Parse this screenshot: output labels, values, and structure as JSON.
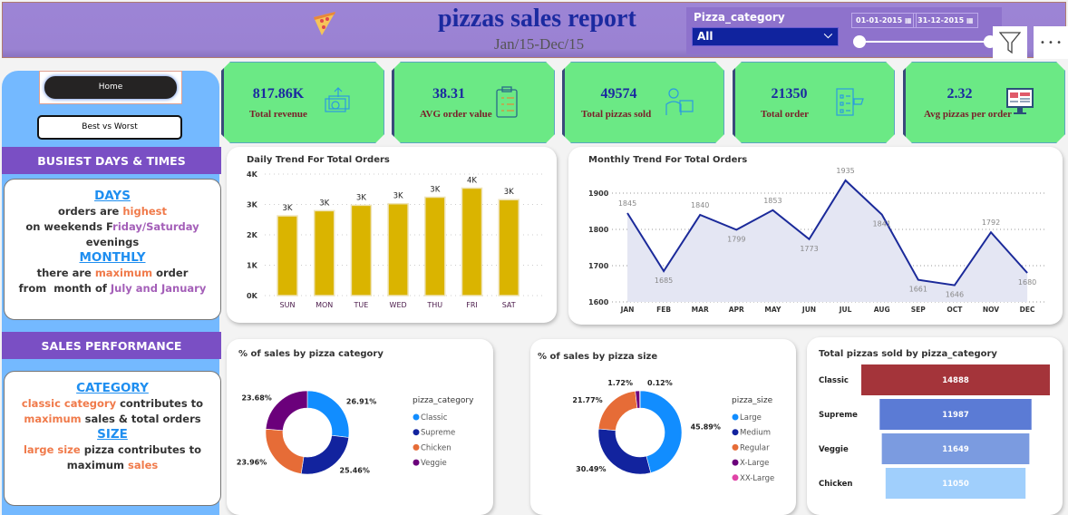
{
  "header": {
    "title": "pizzas sales report",
    "subtitle": "Jan/15-Dec/15",
    "pizza-icon": "pizza-slice-icon"
  },
  "slicer": {
    "label": "Pizza_category",
    "selected": "All",
    "date_start": "01-01-2015",
    "date_end": "31-12-2015"
  },
  "toolbar": {
    "filter_icon": "filter-icon",
    "more_label": "• • •"
  },
  "nav": {
    "home": "Home",
    "best_worst": "Best vs Worst"
  },
  "insights": {
    "busiest_title": "BUSIEST DAYS & TIMES",
    "days_h": "DAYS",
    "days_1a": "orders are ",
    "days_1b": "highest",
    "days_2a": "on weekends F",
    "days_2b": "riday/Saturday",
    "days_3": "evenings",
    "monthly_h": "MONTHLY",
    "monthly_1a": "there are ",
    "monthly_1b": "maximum",
    "monthly_1c": " order",
    "monthly_2a": "from  month of ",
    "monthly_2b": "July and January",
    "sales_title": "SALES PERFORMANCE",
    "cat_h": "CATEGORY",
    "cat_1a": "classic category",
    "cat_1b": " contributes to",
    "cat_2a": "maximum",
    "cat_2b": " sales & total orders",
    "size_h": "SIZE",
    "size_1a": "large size",
    "size_1b": " pizza contributes to",
    "size_2a": "maximum ",
    "size_2b": "sales"
  },
  "kpis": [
    {
      "value": "817.86K",
      "label": "Total revenue",
      "icon": "money-icon"
    },
    {
      "value": "38.31",
      "label": "AVG order value",
      "icon": "clipboard-icon"
    },
    {
      "value": "49574",
      "label": "Total pizzas sold",
      "icon": "delivery-person-icon"
    },
    {
      "value": "21350",
      "label": "Total order",
      "icon": "order-list-icon"
    },
    {
      "value": "2.32",
      "label": "Avg pizzas per order",
      "icon": "monitor-icon"
    }
  ],
  "colors": {
    "bar": "#dab400",
    "line": "#1b2a9a",
    "area": "#e4e6f3"
  },
  "chart_data": [
    {
      "type": "bar",
      "title": "Daily Trend For Total Orders",
      "categories": [
        "SUN",
        "MON",
        "TUE",
        "WED",
        "THU",
        "FRI",
        "SAT"
      ],
      "values": [
        2624,
        2794,
        2973,
        3024,
        3239,
        3538,
        3158
      ],
      "data_labels": [
        "3K",
        "3K",
        "3K",
        "3K",
        "3K",
        "4K",
        "3K"
      ],
      "yticks": [
        "0K",
        "1K",
        "2K",
        "3K",
        "4K"
      ],
      "ylim": [
        0,
        4000
      ],
      "grid": true
    },
    {
      "type": "area",
      "title": "Monthly Trend For Total Orders",
      "categories": [
        "JAN",
        "FEB",
        "MAR",
        "APR",
        "MAY",
        "JUN",
        "JUL",
        "AUG",
        "SEP",
        "OCT",
        "NOV",
        "DEC"
      ],
      "values": [
        1845,
        1685,
        1840,
        1799,
        1853,
        1773,
        1935,
        1841,
        1661,
        1646,
        1792,
        1680
      ],
      "yticks": [
        "1600",
        "1700",
        "1800",
        "1900"
      ],
      "ylim": [
        1600,
        1950
      ],
      "grid": true
    },
    {
      "type": "pie",
      "title": "% of sales by pizza category",
      "legend_title": "pizza_category",
      "legend": "right",
      "slices": [
        {
          "name": "Classic",
          "value": 26.91,
          "label": "26.91%",
          "color": "#118dff"
        },
        {
          "name": "Supreme",
          "value": 25.46,
          "label": "25.46%",
          "color": "#12239e"
        },
        {
          "name": "Chicken",
          "value": 23.96,
          "label": "23.96%",
          "color": "#e66c37"
        },
        {
          "name": "Veggie",
          "value": 23.68,
          "label": "23.68%",
          "color": "#6b007b"
        }
      ]
    },
    {
      "type": "pie",
      "title": "% of sales by pizza size",
      "legend_title": "pizza_size",
      "legend": "right",
      "slices": [
        {
          "name": "Large",
          "value": 45.89,
          "label": "45.89%",
          "color": "#118dff"
        },
        {
          "name": "Medium",
          "value": 30.49,
          "label": "30.49%",
          "color": "#12239e"
        },
        {
          "name": "Regular",
          "value": 21.77,
          "label": "21.77%",
          "color": "#e66c37"
        },
        {
          "name": "X-Large",
          "value": 1.72,
          "label": "1.72%",
          "color": "#6b007b"
        },
        {
          "name": "XX-Large",
          "value": 0.12,
          "label": "0.12%",
          "color": "#e044a7"
        }
      ]
    },
    {
      "type": "bar",
      "title": "Total pizzas sold by pizza_category",
      "orientation": "funnel",
      "categories": [
        "Classic",
        "Supreme",
        "Veggie",
        "Chicken"
      ],
      "values": [
        14888,
        11987,
        11649,
        11050
      ],
      "data_labels": [
        "14888",
        "11987",
        "11649",
        "11050"
      ],
      "colors": [
        "#a4343a",
        "#5b7bd5",
        "#7b9be0",
        "#a0cffc"
      ]
    }
  ]
}
